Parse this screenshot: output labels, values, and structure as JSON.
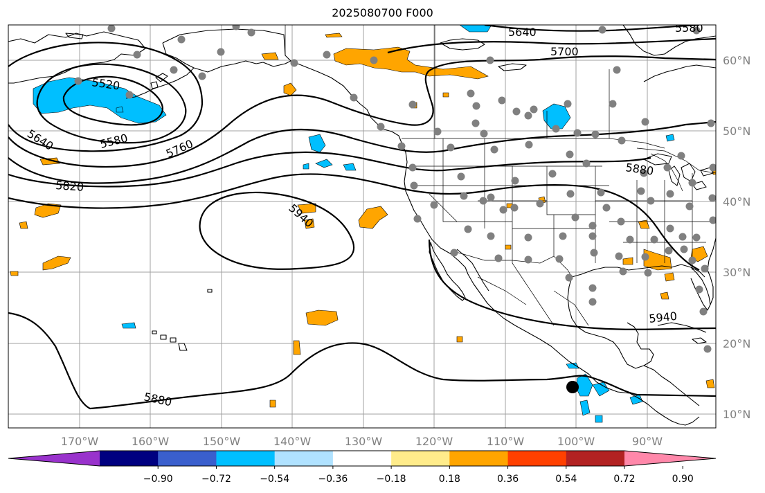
{
  "title": "2025080700 F000",
  "colors": {
    "grid": "#a0a0a0",
    "coast": "#000000",
    "station": "#808080",
    "contour": "#000000"
  },
  "lat_labels": [
    "60°N",
    "50°N",
    "40°N",
    "30°N",
    "20°N",
    "10°N"
  ],
  "lon_labels": [
    "170°W",
    "160°W",
    "150°W",
    "140°W",
    "130°W",
    "120°W",
    "110°W",
    "100°W",
    "90°W"
  ],
  "contour_labels": [
    "5640",
    "5700",
    "5580",
    "5520",
    "5580",
    "5640",
    "5760",
    "5820",
    "5880",
    "5940",
    "5940",
    "5880"
  ],
  "colorbar": {
    "colors": [
      "#9932cc",
      "#000080",
      "#3a5fcd",
      "#00bfff",
      "#b0e2ff",
      "#ffffff",
      "#ffec8b",
      "#ffa500",
      "#ff4000",
      "#b22222",
      "#ff88aa"
    ],
    "ticks": [
      "−0.90",
      "−0.72",
      "−0.54",
      "−0.36",
      "−0.18",
      "0.18",
      "0.36",
      "0.54",
      "0.72",
      "0.90"
    ]
  }
}
